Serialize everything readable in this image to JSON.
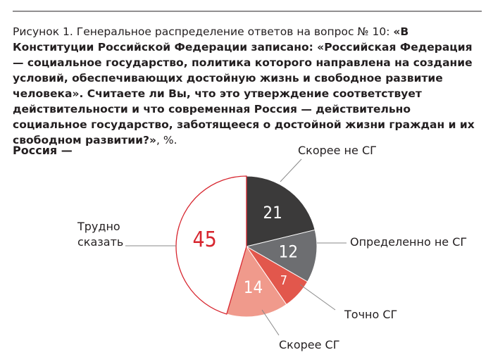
{
  "chart_data": {
    "type": "pie",
    "title": {
      "prefix": "Рисунок 1. Генеральное распределение ответов на вопрос № 10: ",
      "question": "«В Конституции Российской Федерации записано: «Российская Федерация — социальное государство, политика которого направлена на создание условий, обеспечивающих достойную жизнь и свободное развитие человека». Считаете ли Вы, что это утверждение соответствует действительности и что современная Россия — действительно социальное государство, заботящееся о достойной жизни граждан и их свободном развитии?»",
      "suffix": ", %."
    },
    "subtitle": "Россия —",
    "categories": [
      "Скорее не СГ",
      "Определенно не СГ",
      "Точно СГ",
      "Скорее СГ",
      "Трудно сказать"
    ],
    "values": [
      21,
      12,
      7,
      14,
      45
    ],
    "colors": [
      "#3b3a3a",
      "#6d6e71",
      "#e2574c",
      "#f09a8c",
      "#ffffff"
    ],
    "edge_color": "#d7262f"
  }
}
